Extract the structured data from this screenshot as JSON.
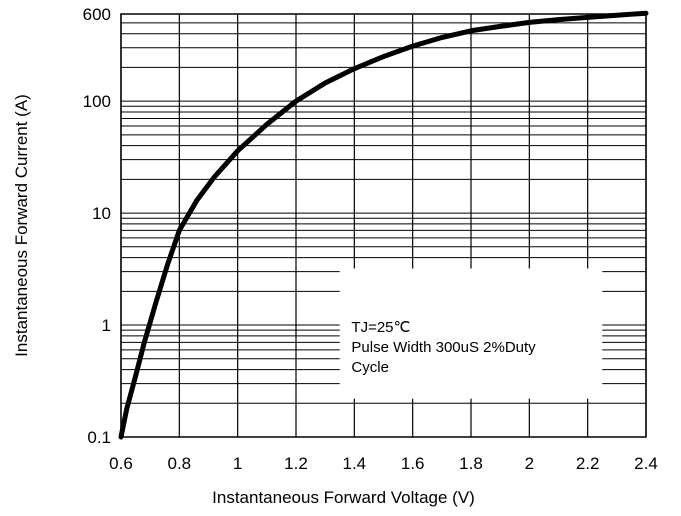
{
  "chart_data": {
    "type": "line",
    "title": "",
    "xlabel": "Instantaneous Forward Voltage (V)",
    "ylabel": "Instantaneous Forward Current (A)",
    "xlim": [
      0.6,
      2.4
    ],
    "ylim": [
      0.1,
      600
    ],
    "yscale": "log",
    "grid": true,
    "x_ticks": [
      {
        "value": 0.6,
        "label": "0.6"
      },
      {
        "value": 0.8,
        "label": "0.8"
      },
      {
        "value": 1.0,
        "label": "1"
      },
      {
        "value": 1.2,
        "label": "1.2"
      },
      {
        "value": 1.4,
        "label": "1.4"
      },
      {
        "value": 1.6,
        "label": "1.6"
      },
      {
        "value": 1.8,
        "label": "1.8"
      },
      {
        "value": 2.0,
        "label": "2"
      },
      {
        "value": 2.2,
        "label": "2.2"
      },
      {
        "value": 2.4,
        "label": "2.4"
      }
    ],
    "y_ticks": [
      {
        "value": 0.1,
        "label": "0.1"
      },
      {
        "value": 1,
        "label": "1"
      },
      {
        "value": 10,
        "label": "10"
      },
      {
        "value": 100,
        "label": "100"
      },
      {
        "value": 600,
        "label": "600"
      }
    ],
    "series": [
      {
        "color": "#000000",
        "x": [
          0.6,
          0.62,
          0.65,
          0.68,
          0.72,
          0.76,
          0.8,
          0.86,
          0.92,
          1.0,
          1.1,
          1.2,
          1.3,
          1.4,
          1.5,
          1.6,
          1.7,
          1.8,
          1.9,
          2.0,
          2.1,
          2.2,
          2.3,
          2.4
        ],
        "y": [
          0.1,
          0.18,
          0.35,
          0.7,
          1.6,
          3.5,
          7,
          13,
          21,
          36,
          62,
          100,
          145,
          195,
          250,
          310,
          370,
          425,
          465,
          505,
          535,
          560,
          585,
          610
        ]
      }
    ],
    "annotation": {
      "lines": [
        "TJ=25℃",
        "Pulse Width 300uS 2%Duty",
        "Cycle"
      ]
    }
  }
}
